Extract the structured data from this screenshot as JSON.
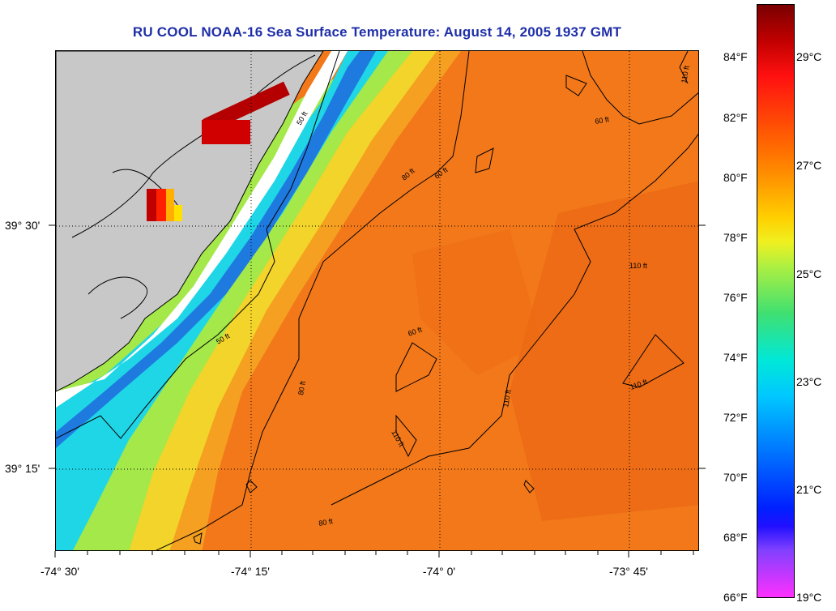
{
  "title": "RU COOL  NOAA-16  Sea Surface Temperature:  August 14, 2005 1937 GMT",
  "map": {
    "longitude_labels": [
      "-74° 30'",
      "-74° 15'",
      "-74° 0'",
      "-73° 45'"
    ],
    "latitude_labels": [
      "39° 30'",
      "39° 15'"
    ],
    "contour_labels": [
      "50 ft",
      "50 ft",
      "60 ft",
      "60 ft",
      "60 ft",
      "80 ft",
      "80 ft",
      "80 ft",
      "110 ft",
      "110 ft",
      "110 ft",
      "110 ft",
      "110 ft"
    ],
    "land_color": "#c8c8c8",
    "colors": {
      "cold": "#00d8f0",
      "cool": "#7fff60",
      "warm": "#f07a10",
      "hot": "#b00000"
    }
  },
  "colorbar": {
    "fahrenheit_labels": [
      "84°F",
      "82°F",
      "80°F",
      "78°F",
      "76°F",
      "74°F",
      "72°F",
      "70°F",
      "68°F",
      "66°F"
    ],
    "celsius_labels": [
      "29°C",
      "27°C",
      "25°C",
      "23°C",
      "21°C",
      "19°C"
    ]
  }
}
